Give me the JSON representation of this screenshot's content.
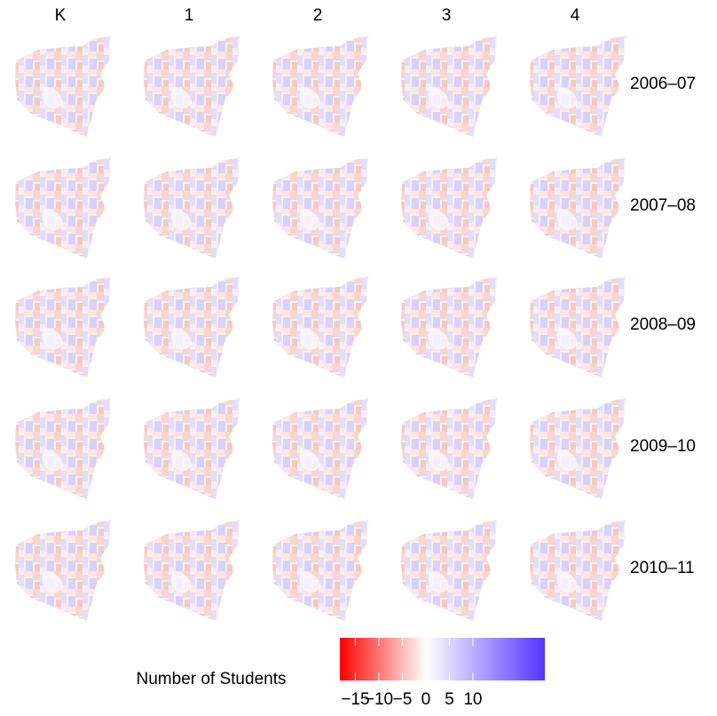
{
  "columns": [
    "K",
    "1",
    "2",
    "3",
    "4"
  ],
  "rows": [
    "2006–07",
    "2007–08",
    "2008–09",
    "2009–10",
    "2010–11"
  ],
  "legend": {
    "title": "Number of Students",
    "lim": [
      -18.3,
      25.3
    ],
    "colors": [
      "#ff0000",
      "#ffffff",
      "#5533ff"
    ],
    "ticks": [
      {
        "value": -15,
        "label": "−15"
      },
      {
        "value": -10,
        "label": "−10"
      },
      {
        "value": -5,
        "label": "−5"
      },
      0,
      5,
      10
    ]
  }
}
